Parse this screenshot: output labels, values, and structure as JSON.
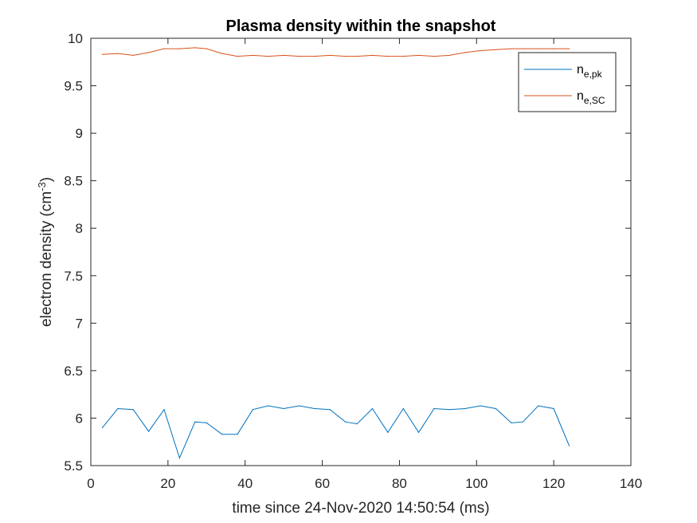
{
  "chart_data": {
    "type": "line",
    "title": "Plasma density within the snapshot",
    "xlabel": "time since 24-Nov-2020 14:50:54 (ms)",
    "ylabel": {
      "main": "electron density (cm",
      "sup": "-3",
      "end": ")"
    },
    "xlim": [
      0,
      140
    ],
    "ylim": [
      5.5,
      10
    ],
    "xticks": [
      "0",
      "20",
      "40",
      "60",
      "80",
      "100",
      "120",
      "140"
    ],
    "yticks": [
      "5.5",
      "6",
      "6.5",
      "7",
      "7.5",
      "8",
      "8.5",
      "9",
      "9.5",
      "10"
    ],
    "grid": false,
    "legend_position": "top-right",
    "series": [
      {
        "name": {
          "base": "n",
          "sub": "e,pk"
        },
        "color": "#0072BD",
        "x": [
          3,
          7,
          11,
          15,
          19,
          23,
          27,
          30,
          34,
          38,
          42,
          46,
          50,
          54,
          58,
          62,
          66,
          69,
          73,
          77,
          81,
          85,
          89,
          93,
          97,
          101,
          105,
          109,
          112,
          116,
          120,
          124
        ],
        "y": [
          5.9,
          6.1,
          6.09,
          5.86,
          6.09,
          5.58,
          5.96,
          5.95,
          5.83,
          5.83,
          6.09,
          6.13,
          6.1,
          6.13,
          6.1,
          6.09,
          5.96,
          5.94,
          6.1,
          5.85,
          6.1,
          5.85,
          6.1,
          6.09,
          6.1,
          6.13,
          6.1,
          5.95,
          5.96,
          6.13,
          6.1,
          5.71
        ]
      },
      {
        "name": {
          "base": "n",
          "sub": "e,SC"
        },
        "color": "#D95319",
        "x": [
          3,
          7,
          11,
          15,
          19,
          23,
          27,
          30,
          34,
          38,
          42,
          46,
          50,
          54,
          58,
          62,
          66,
          69,
          73,
          77,
          81,
          85,
          89,
          93,
          97,
          101,
          105,
          109,
          112,
          116,
          120,
          124
        ],
        "y": [
          9.83,
          9.84,
          9.82,
          9.85,
          9.89,
          9.89,
          9.9,
          9.89,
          9.84,
          9.81,
          9.82,
          9.81,
          9.82,
          9.81,
          9.81,
          9.82,
          9.81,
          9.81,
          9.82,
          9.81,
          9.81,
          9.82,
          9.81,
          9.82,
          9.85,
          9.87,
          9.88,
          9.89,
          9.89,
          9.89,
          9.89,
          9.89
        ]
      }
    ]
  }
}
